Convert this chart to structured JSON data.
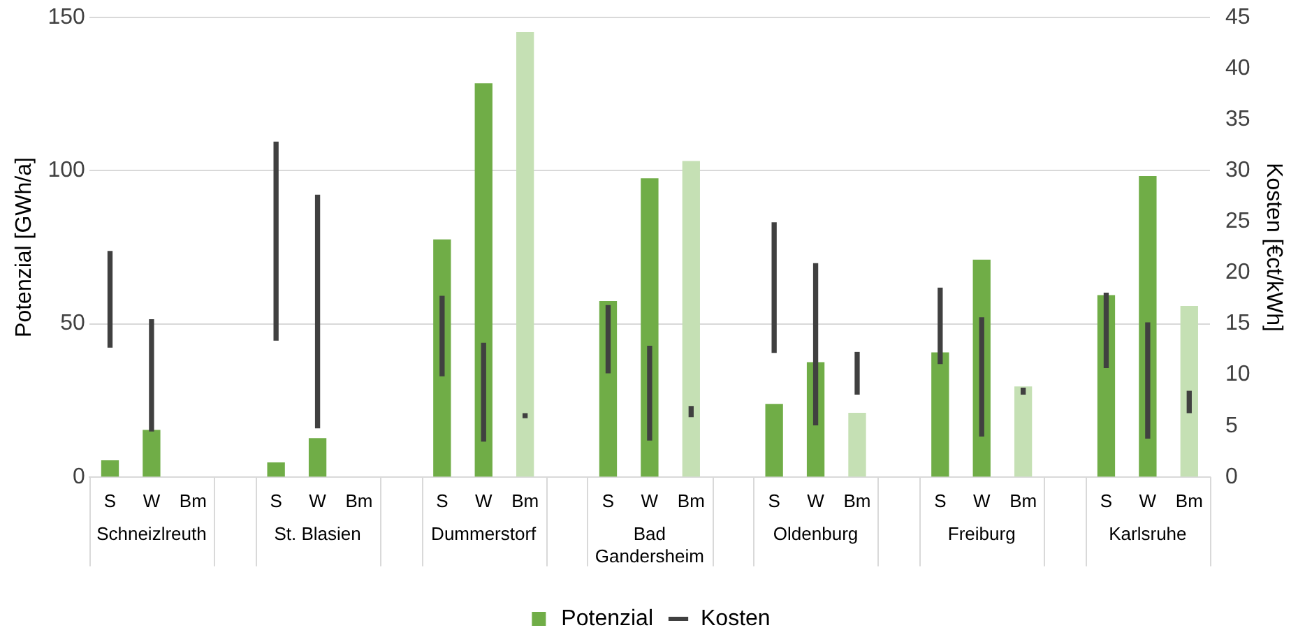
{
  "chart_data": {
    "type": "bar",
    "ylabel": "Potenzial [GWh/a]",
    "y2label": "Kosten [€ct/kWh]",
    "categories": [
      "S",
      "W",
      "Bm",
      null,
      "S",
      "W",
      "Bm",
      null,
      "S",
      "W",
      "Bm",
      null,
      "S",
      "W",
      "Bm",
      null,
      "S",
      "W",
      "Bm",
      null,
      "S",
      "W",
      "Bm",
      null,
      "S",
      "W",
      "Bm"
    ],
    "annotations": [
      "Schneizlreuth",
      "St. Blasien",
      "Dummerstorf",
      "Bad Gandersheim",
      "Oldenburg",
      "Freiburg",
      "Karlsruhe"
    ],
    "series": [
      {
        "name": "Potenzial",
        "color": "#70ad47",
        "colors": [
          "#70ad47",
          "#70ad47",
          "#70ad47",
          null,
          "#70ad47",
          "#70ad47",
          "#70ad47",
          null,
          "#70ad47",
          "#70ad47",
          "#c5e0b4",
          null,
          "#70ad47",
          "#70ad47",
          "#c5e0b4",
          null,
          "#70ad47",
          "#70ad47",
          "#c5e0b4",
          null,
          "#70ad47",
          "#70ad47",
          "#c5e0b4",
          null,
          "#70ad47",
          "#70ad47",
          "#c5e0b4"
        ],
        "values": [
          5.3,
          15.2,
          null,
          null,
          4.6,
          12.5,
          null,
          null,
          77.4,
          128.4,
          145.1,
          null,
          57.3,
          97.4,
          103,
          null,
          23.7,
          37.3,
          20.8,
          null,
          40.5,
          70.8,
          29.4,
          null,
          59.2,
          98.1,
          55.7
        ]
      },
      {
        "name": "Kosten",
        "axis": "y2",
        "color": "#404040",
        "base": [
          12.7,
          4.5,
          null,
          null,
          13.4,
          4.8,
          null,
          null,
          9.9,
          3.5,
          5.8,
          null,
          10.2,
          3.6,
          5.9,
          null,
          12.2,
          5.1,
          8.1,
          null,
          11.1,
          4.0,
          8.1,
          null,
          10.7,
          3.8,
          6.3
        ],
        "values": [
          9.4,
          10.9,
          null,
          null,
          19.4,
          22.8,
          null,
          null,
          7.8,
          9.6,
          0.4,
          null,
          6.6,
          9.2,
          1.0,
          null,
          12.7,
          15.8,
          4.1,
          null,
          7.4,
          11.6,
          0.6,
          null,
          7.3,
          11.3,
          2.1
        ]
      }
    ],
    "ylim": [
      0,
      150
    ],
    "yticks": [
      0,
      50,
      100,
      150
    ],
    "y2lim": [
      0,
      45
    ],
    "y2ticks": [
      0,
      5,
      10,
      15,
      20,
      25,
      30,
      35,
      40,
      45
    ],
    "grid": "y",
    "legend": "bottom"
  }
}
